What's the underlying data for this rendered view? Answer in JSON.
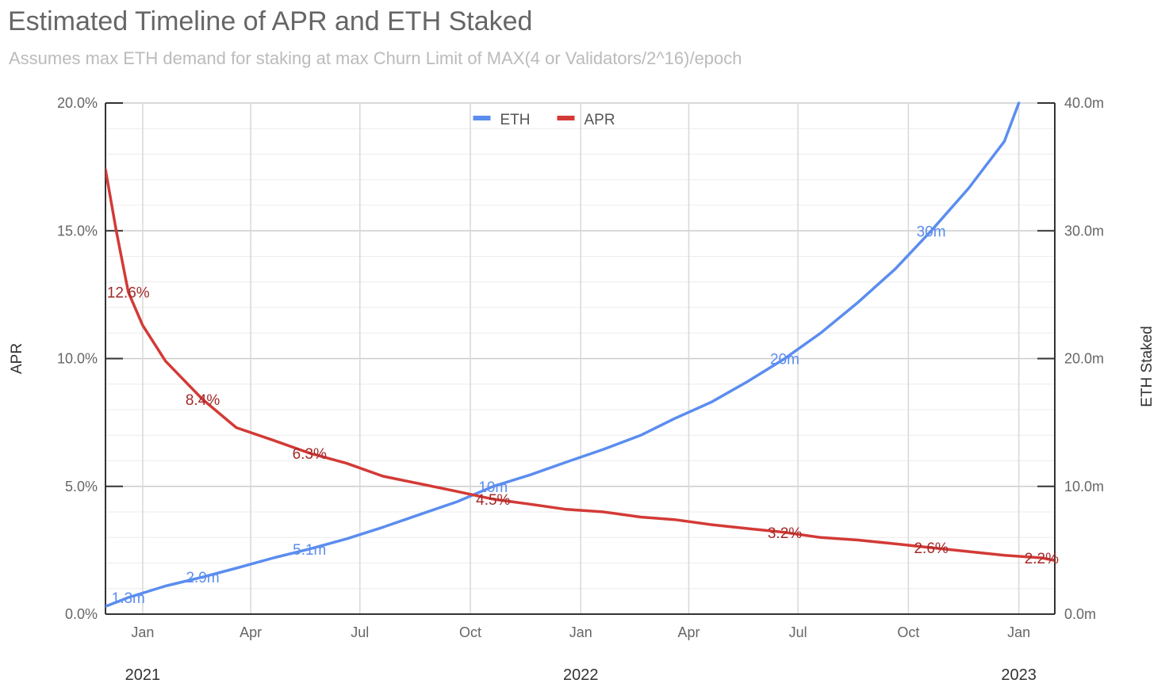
{
  "chart_data": {
    "type": "line",
    "title": "Estimated Timeline of APR and ETH Staked",
    "subtitle": "Assumes max ETH demand for staking at max Churn Limit of MAX(4 or Validators/2^16)/epoch",
    "x_start": "2020-12-01",
    "x_end": "2023-01-31",
    "x_ticks": [
      {
        "date": "2021-01-01",
        "label": "Jan"
      },
      {
        "date": "2021-04-01",
        "label": "Apr"
      },
      {
        "date": "2021-07-01",
        "label": "Jul"
      },
      {
        "date": "2021-10-01",
        "label": "Oct"
      },
      {
        "date": "2022-01-01",
        "label": "Jan"
      },
      {
        "date": "2022-04-01",
        "label": "Apr"
      },
      {
        "date": "2022-07-01",
        "label": "Jul"
      },
      {
        "date": "2022-10-01",
        "label": "Oct"
      },
      {
        "date": "2023-01-01",
        "label": "Jan"
      }
    ],
    "year_labels": [
      {
        "date": "2021-01-01",
        "label": "2021"
      },
      {
        "date": "2022-01-01",
        "label": "2022"
      },
      {
        "date": "2023-01-01",
        "label": "2023"
      }
    ],
    "y_left": {
      "label": "APR",
      "range": [
        0,
        20
      ],
      "ticks": [
        0,
        5,
        10,
        15,
        20
      ],
      "tick_labels": [
        "0.0%",
        "5.0%",
        "10.0%",
        "15.0%",
        "20.0%"
      ]
    },
    "y_right": {
      "label": "ETH Staked",
      "range": [
        0,
        40
      ],
      "ticks": [
        0,
        10,
        20,
        30,
        40
      ],
      "tick_labels": [
        "0.0m",
        "10.0m",
        "20.0m",
        "30.0m",
        "40.0m"
      ]
    },
    "grid": true,
    "legend": {
      "position": "top-center"
    },
    "series": [
      {
        "name": "ETH",
        "axis": "right",
        "color": "#5b8def",
        "points": [
          [
            "2020-12-01",
            0.6
          ],
          [
            "2020-12-20",
            1.3
          ],
          [
            "2021-01-20",
            2.2
          ],
          [
            "2021-02-20",
            2.9
          ],
          [
            "2021-03-20",
            3.6
          ],
          [
            "2021-04-20",
            4.4
          ],
          [
            "2021-05-20",
            5.1
          ],
          [
            "2021-06-20",
            5.9
          ],
          [
            "2021-07-20",
            6.8
          ],
          [
            "2021-08-20",
            7.8
          ],
          [
            "2021-09-20",
            8.8
          ],
          [
            "2021-10-20",
            10.0
          ],
          [
            "2021-11-20",
            10.9
          ],
          [
            "2021-12-20",
            11.9
          ],
          [
            "2022-01-20",
            12.9
          ],
          [
            "2022-02-20",
            14.0
          ],
          [
            "2022-03-20",
            15.3
          ],
          [
            "2022-04-20",
            16.6
          ],
          [
            "2022-05-20",
            18.2
          ],
          [
            "2022-06-20",
            20.0
          ],
          [
            "2022-07-20",
            22.0
          ],
          [
            "2022-08-20",
            24.4
          ],
          [
            "2022-09-20",
            27.0
          ],
          [
            "2022-10-20",
            30.0
          ],
          [
            "2022-11-20",
            33.3
          ],
          [
            "2022-12-20",
            37.0
          ],
          [
            "2023-01-01",
            40.0
          ]
        ],
        "labels": [
          {
            "date": "2020-12-20",
            "value": 1.3,
            "text": "1.3m"
          },
          {
            "date": "2021-02-20",
            "value": 2.9,
            "text": "2.9m"
          },
          {
            "date": "2021-05-20",
            "value": 5.1,
            "text": "5.1m"
          },
          {
            "date": "2021-10-20",
            "value": 10.0,
            "text": "10m"
          },
          {
            "date": "2022-06-20",
            "value": 20.0,
            "text": "20m"
          },
          {
            "date": "2022-10-20",
            "value": 30.0,
            "text": "30m"
          }
        ]
      },
      {
        "name": "APR",
        "axis": "left",
        "color": "#d33a36",
        "points": [
          [
            "2020-12-01",
            17.4
          ],
          [
            "2020-12-10",
            15.0
          ],
          [
            "2020-12-20",
            12.6
          ],
          [
            "2021-01-01",
            11.3
          ],
          [
            "2021-01-20",
            9.9
          ],
          [
            "2021-02-20",
            8.4
          ],
          [
            "2021-03-20",
            7.3
          ],
          [
            "2021-04-20",
            6.8
          ],
          [
            "2021-05-20",
            6.3
          ],
          [
            "2021-06-20",
            5.9
          ],
          [
            "2021-07-20",
            5.4
          ],
          [
            "2021-08-20",
            5.1
          ],
          [
            "2021-09-20",
            4.8
          ],
          [
            "2021-10-20",
            4.5
          ],
          [
            "2021-11-20",
            4.3
          ],
          [
            "2021-12-20",
            4.1
          ],
          [
            "2022-01-20",
            4.0
          ],
          [
            "2022-02-20",
            3.8
          ],
          [
            "2022-03-20",
            3.7
          ],
          [
            "2022-04-20",
            3.5
          ],
          [
            "2022-05-20",
            3.35
          ],
          [
            "2022-06-20",
            3.2
          ],
          [
            "2022-07-20",
            3.0
          ],
          [
            "2022-08-20",
            2.9
          ],
          [
            "2022-09-20",
            2.75
          ],
          [
            "2022-10-20",
            2.6
          ],
          [
            "2022-11-20",
            2.45
          ],
          [
            "2022-12-20",
            2.3
          ],
          [
            "2023-01-20",
            2.2
          ],
          [
            "2023-01-31",
            2.1
          ]
        ],
        "labels": [
          {
            "date": "2020-12-20",
            "value": 12.6,
            "text": "12.6%"
          },
          {
            "date": "2021-02-20",
            "value": 8.4,
            "text": "8.4%"
          },
          {
            "date": "2021-05-20",
            "value": 6.3,
            "text": "6.3%"
          },
          {
            "date": "2021-10-20",
            "value": 4.5,
            "text": "4.5%"
          },
          {
            "date": "2022-06-20",
            "value": 3.2,
            "text": "3.2%"
          },
          {
            "date": "2022-10-20",
            "value": 2.6,
            "text": "2.6%"
          },
          {
            "date": "2023-01-20",
            "value": 2.2,
            "text": "2.2%"
          }
        ]
      }
    ]
  }
}
